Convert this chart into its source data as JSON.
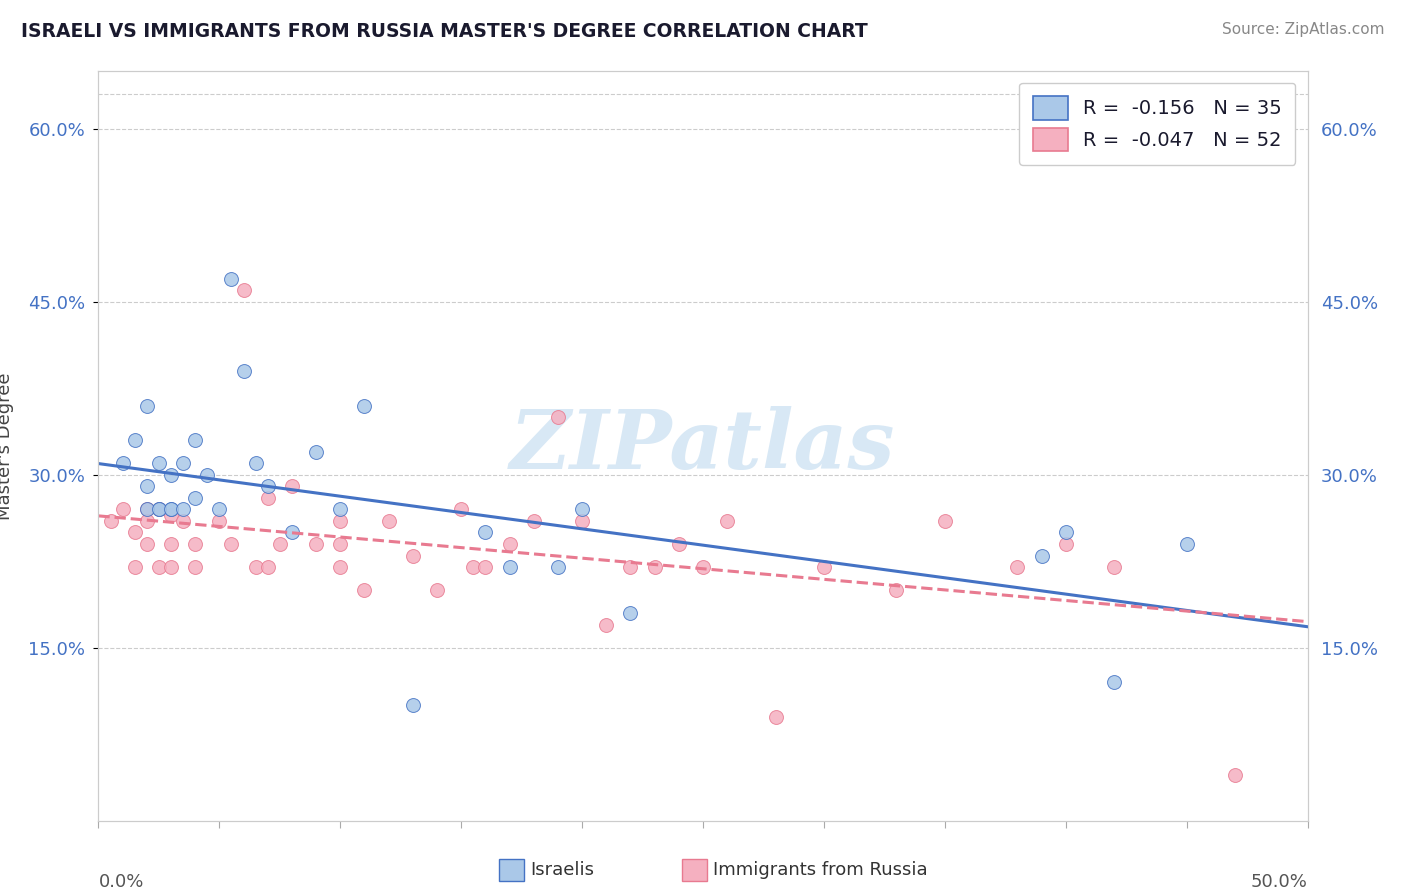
{
  "title": "ISRAELI VS IMMIGRANTS FROM RUSSIA MASTER'S DEGREE CORRELATION CHART",
  "source": "Source: ZipAtlas.com",
  "ylabel": "Master's Degree",
  "xmin": 0.0,
  "xmax": 0.5,
  "ymin": 0.0,
  "ymax": 0.65,
  "ytick_vals": [
    0.15,
    0.3,
    0.45,
    0.6
  ],
  "ytick_labels": [
    "15.0%",
    "30.0%",
    "45.0%",
    "60.0%"
  ],
  "xtick_vals": [
    0.0,
    0.05,
    0.1,
    0.15,
    0.2,
    0.25,
    0.3,
    0.35,
    0.4,
    0.45,
    0.5
  ],
  "legend_R_israeli": "-0.156",
  "legend_N_israeli": "35",
  "legend_R_russia": "-0.047",
  "legend_N_russia": "52",
  "israeli_color": "#aac8e8",
  "russia_color": "#f5b0c0",
  "trend_israeli_color": "#4472c4",
  "trend_russia_color": "#e87a90",
  "tick_label_color": "#4472c4",
  "background_color": "#ffffff",
  "grid_color": "#cccccc",
  "title_color": "#1a1a2e",
  "source_color": "#888888",
  "watermark_text": "ZIPatlas",
  "watermark_color": "#d8e8f5",
  "israeli_x": [
    0.02,
    0.03,
    0.02,
    0.025,
    0.03,
    0.01,
    0.015,
    0.02,
    0.025,
    0.025,
    0.03,
    0.035,
    0.04,
    0.035,
    0.04,
    0.045,
    0.05,
    0.055,
    0.06,
    0.065,
    0.07,
    0.08,
    0.09,
    0.1,
    0.11,
    0.13,
    0.16,
    0.17,
    0.19,
    0.2,
    0.22,
    0.39,
    0.4,
    0.42,
    0.45
  ],
  "israeli_y": [
    0.29,
    0.3,
    0.36,
    0.27,
    0.27,
    0.31,
    0.33,
    0.27,
    0.27,
    0.31,
    0.27,
    0.27,
    0.28,
    0.31,
    0.33,
    0.3,
    0.27,
    0.47,
    0.39,
    0.31,
    0.29,
    0.25,
    0.32,
    0.27,
    0.36,
    0.1,
    0.25,
    0.22,
    0.22,
    0.27,
    0.18,
    0.23,
    0.25,
    0.12,
    0.24
  ],
  "russia_x": [
    0.005,
    0.01,
    0.015,
    0.015,
    0.02,
    0.02,
    0.02,
    0.025,
    0.025,
    0.03,
    0.03,
    0.03,
    0.035,
    0.04,
    0.04,
    0.05,
    0.055,
    0.06,
    0.065,
    0.07,
    0.07,
    0.075,
    0.08,
    0.09,
    0.1,
    0.1,
    0.1,
    0.11,
    0.12,
    0.13,
    0.14,
    0.15,
    0.155,
    0.16,
    0.17,
    0.18,
    0.19,
    0.2,
    0.21,
    0.22,
    0.23,
    0.24,
    0.25,
    0.26,
    0.28,
    0.3,
    0.33,
    0.35,
    0.38,
    0.4,
    0.42,
    0.47
  ],
  "russia_y": [
    0.26,
    0.27,
    0.22,
    0.25,
    0.27,
    0.24,
    0.26,
    0.22,
    0.27,
    0.22,
    0.24,
    0.265,
    0.26,
    0.22,
    0.24,
    0.26,
    0.24,
    0.46,
    0.22,
    0.28,
    0.22,
    0.24,
    0.29,
    0.24,
    0.26,
    0.24,
    0.22,
    0.2,
    0.26,
    0.23,
    0.2,
    0.27,
    0.22,
    0.22,
    0.24,
    0.26,
    0.35,
    0.26,
    0.17,
    0.22,
    0.22,
    0.24,
    0.22,
    0.26,
    0.09,
    0.22,
    0.2,
    0.26,
    0.22,
    0.24,
    0.22,
    0.04
  ]
}
